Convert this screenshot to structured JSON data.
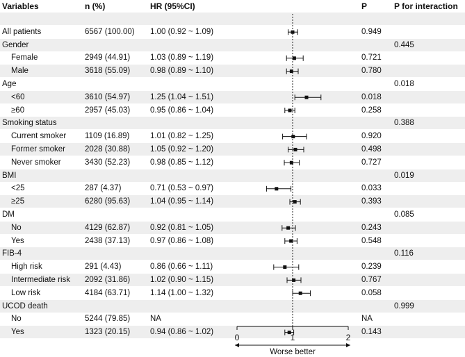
{
  "headers": {
    "variables": "Variables",
    "n": "n (%)",
    "hr": "HR (95%CI)",
    "p": "P",
    "p_interaction": "P for interaction"
  },
  "chart_data": {
    "type": "forest",
    "x_axis": {
      "ticks": [
        0,
        1,
        2
      ],
      "tick_labels": [
        "0",
        "1",
        "2"
      ],
      "range": [
        0,
        2
      ],
      "reference_line": 1,
      "direction_label": "Worse better"
    },
    "rows": [
      {
        "label": "",
        "indent": false,
        "n": "",
        "hr": "",
        "p": "",
        "p_int": "",
        "est": null,
        "lo": null,
        "hi": null
      },
      {
        "label": "All patients",
        "indent": false,
        "n": "6567 (100.00)",
        "hr": "1.00 (0.92 ~ 1.09)",
        "p": "0.949",
        "p_int": "",
        "est": 1.0,
        "lo": 0.92,
        "hi": 1.09
      },
      {
        "label": "Gender",
        "indent": false,
        "n": "",
        "hr": "",
        "p": "",
        "p_int": "0.445",
        "est": null,
        "lo": null,
        "hi": null
      },
      {
        "label": "Female",
        "indent": true,
        "n": "2949 (44.91)",
        "hr": "1.03 (0.89 ~ 1.19)",
        "p": "0.721",
        "p_int": "",
        "est": 1.03,
        "lo": 0.89,
        "hi": 1.19
      },
      {
        "label": "Male",
        "indent": true,
        "n": "3618 (55.09)",
        "hr": "0.98 (0.89 ~ 1.10)",
        "p": "0.780",
        "p_int": "",
        "est": 0.98,
        "lo": 0.89,
        "hi": 1.1
      },
      {
        "label": "Age",
        "indent": false,
        "n": "",
        "hr": "",
        "p": "",
        "p_int": "0.018",
        "est": null,
        "lo": null,
        "hi": null
      },
      {
        "label": "<60",
        "indent": true,
        "n": "3610 (54.97)",
        "hr": "1.25 (1.04 ~ 1.51)",
        "p": "0.018",
        "p_int": "",
        "est": 1.25,
        "lo": 1.04,
        "hi": 1.51
      },
      {
        "label": "≥60",
        "indent": true,
        "n": "2957 (45.03)",
        "hr": "0.95 (0.86 ~ 1.04)",
        "p": "0.258",
        "p_int": "",
        "est": 0.95,
        "lo": 0.86,
        "hi": 1.04
      },
      {
        "label": "Smoking status",
        "indent": false,
        "n": "",
        "hr": "",
        "p": "",
        "p_int": "0.388",
        "est": null,
        "lo": null,
        "hi": null
      },
      {
        "label": "Current smoker",
        "indent": true,
        "n": "1109 (16.89)",
        "hr": "1.01 (0.82 ~ 1.25)",
        "p": "0.920",
        "p_int": "",
        "est": 1.01,
        "lo": 0.82,
        "hi": 1.25
      },
      {
        "label": "Former smoker",
        "indent": true,
        "n": "2028 (30.88)",
        "hr": "1.05 (0.92 ~ 1.20)",
        "p": "0.498",
        "p_int": "",
        "est": 1.05,
        "lo": 0.92,
        "hi": 1.2
      },
      {
        "label": "Never smoker",
        "indent": true,
        "n": "3430 (52.23)",
        "hr": "0.98 (0.85 ~ 1.12)",
        "p": "0.727",
        "p_int": "",
        "est": 0.98,
        "lo": 0.85,
        "hi": 1.12
      },
      {
        "label": "BMI",
        "indent": false,
        "n": "",
        "hr": "",
        "p": "",
        "p_int": "0.019",
        "est": null,
        "lo": null,
        "hi": null
      },
      {
        "label": "<25",
        "indent": true,
        "n": "287 (4.37)",
        "hr": "0.71 (0.53 ~ 0.97)",
        "p": "0.033",
        "p_int": "",
        "est": 0.71,
        "lo": 0.53,
        "hi": 0.97
      },
      {
        "label": "≥25",
        "indent": true,
        "n": "6280 (95.63)",
        "hr": "1.04 (0.95 ~ 1.14)",
        "p": "0.393",
        "p_int": "",
        "est": 1.04,
        "lo": 0.95,
        "hi": 1.14
      },
      {
        "label": "DM",
        "indent": false,
        "n": "",
        "hr": "",
        "p": "",
        "p_int": "0.085",
        "est": null,
        "lo": null,
        "hi": null
      },
      {
        "label": "No",
        "indent": true,
        "n": "4129 (62.87)",
        "hr": "0.92 (0.81 ~ 1.05)",
        "p": "0.243",
        "p_int": "",
        "est": 0.92,
        "lo": 0.81,
        "hi": 1.05
      },
      {
        "label": "Yes",
        "indent": true,
        "n": "2438 (37.13)",
        "hr": "0.97 (0.86 ~ 1.08)",
        "p": "0.548",
        "p_int": "",
        "est": 0.97,
        "lo": 0.86,
        "hi": 1.08
      },
      {
        "label": "FIB-4",
        "indent": false,
        "n": "",
        "hr": "",
        "p": "",
        "p_int": "0.116",
        "est": null,
        "lo": null,
        "hi": null
      },
      {
        "label": "High risk",
        "indent": true,
        "n": "291 (4.43)",
        "hr": "0.86 (0.66 ~ 1.11)",
        "p": "0.239",
        "p_int": "",
        "est": 0.86,
        "lo": 0.66,
        "hi": 1.11
      },
      {
        "label": "Intermediate risk",
        "indent": true,
        "n": "2092 (31.86)",
        "hr": "1.02 (0.90 ~ 1.15)",
        "p": "0.767",
        "p_int": "",
        "est": 1.02,
        "lo": 0.9,
        "hi": 1.15
      },
      {
        "label": "Low risk",
        "indent": true,
        "n": "4184 (63.71)",
        "hr": "1.14 (1.00 ~ 1.32)",
        "p": "0.058",
        "p_int": "",
        "est": 1.14,
        "lo": 1.0,
        "hi": 1.32
      },
      {
        "label": "UCOD death",
        "indent": false,
        "n": "",
        "hr": "",
        "p": "",
        "p_int": "0.999",
        "est": null,
        "lo": null,
        "hi": null
      },
      {
        "label": "No",
        "indent": true,
        "n": "5244 (79.85)",
        "hr": "NA",
        "p": "NA",
        "p_int": "",
        "est": null,
        "lo": null,
        "hi": null
      },
      {
        "label": "Yes",
        "indent": true,
        "n": "1323 (20.15)",
        "hr": "0.94 (0.86 ~ 1.02)",
        "p": "0.143",
        "p_int": "",
        "est": 0.94,
        "lo": 0.86,
        "hi": 1.02
      }
    ]
  }
}
